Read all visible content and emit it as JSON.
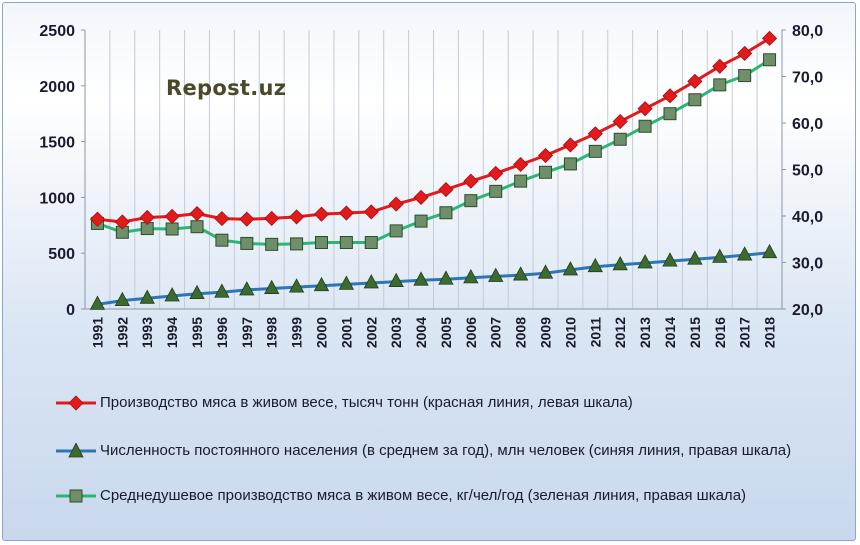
{
  "watermark": "Repost.uz",
  "chart_data": {
    "type": "line",
    "categories": [
      "1991",
      "1992",
      "1993",
      "1994",
      "1995",
      "1996",
      "1997",
      "1998",
      "1999",
      "2000",
      "2001",
      "2002",
      "2003",
      "2004",
      "2005",
      "2006",
      "2007",
      "2008",
      "2009",
      "2010",
      "2011",
      "2012",
      "2013",
      "2014",
      "2015",
      "2016",
      "2017",
      "2018"
    ],
    "left_axis": {
      "ylim": [
        0,
        2500
      ],
      "ticks": [
        "0",
        "500",
        "1000",
        "1500",
        "2000",
        "2500"
      ]
    },
    "right_axis": {
      "ylim": [
        20,
        80
      ],
      "ticks": [
        "20,0",
        "30,0",
        "40,0",
        "50,0",
        "60,0",
        "70,0",
        "80,0"
      ]
    },
    "grid": "vertical",
    "legend_position": "bottom",
    "series": [
      {
        "name": "Производство мяса в живом весе, тысяч тонн (красная линия, левая шкала)",
        "axis": "left",
        "color": "#e31a1c",
        "marker": "diamond",
        "values": [
          805,
          780,
          820,
          830,
          855,
          810,
          805,
          812,
          825,
          850,
          860,
          870,
          940,
          1000,
          1070,
          1145,
          1215,
          1295,
          1375,
          1470,
          1570,
          1680,
          1795,
          1910,
          2040,
          2175,
          2290,
          2425
        ]
      },
      {
        "name": "Численность постоянного населения (в среднем за год), млн человек (синяя линия, правая шкала)",
        "axis": "right",
        "color": "#2e75b6",
        "marker": "triangle",
        "values": [
          21.0,
          21.8,
          22.3,
          22.8,
          23.3,
          23.6,
          24.1,
          24.4,
          24.7,
          25.0,
          25.3,
          25.6,
          25.9,
          26.2,
          26.4,
          26.7,
          27.0,
          27.3,
          27.7,
          28.4,
          29.1,
          29.5,
          29.9,
          30.3,
          30.7,
          31.1,
          31.6,
          32.1
        ]
      },
      {
        "name": "Среднедушевое производство мяса в живом весе, кг/чел/год (зеленая линия, правая шкала)",
        "axis": "right",
        "color": "#2bb673",
        "marker": "square",
        "values": [
          38.4,
          36.5,
          37.3,
          37.2,
          37.7,
          34.8,
          34.1,
          33.9,
          34.0,
          34.3,
          34.3,
          34.3,
          36.8,
          38.9,
          40.7,
          43.3,
          45.3,
          47.5,
          49.4,
          51.2,
          53.9,
          56.5,
          59.3,
          62.0,
          65.0,
          68.2,
          70.2,
          73.6
        ]
      }
    ]
  }
}
